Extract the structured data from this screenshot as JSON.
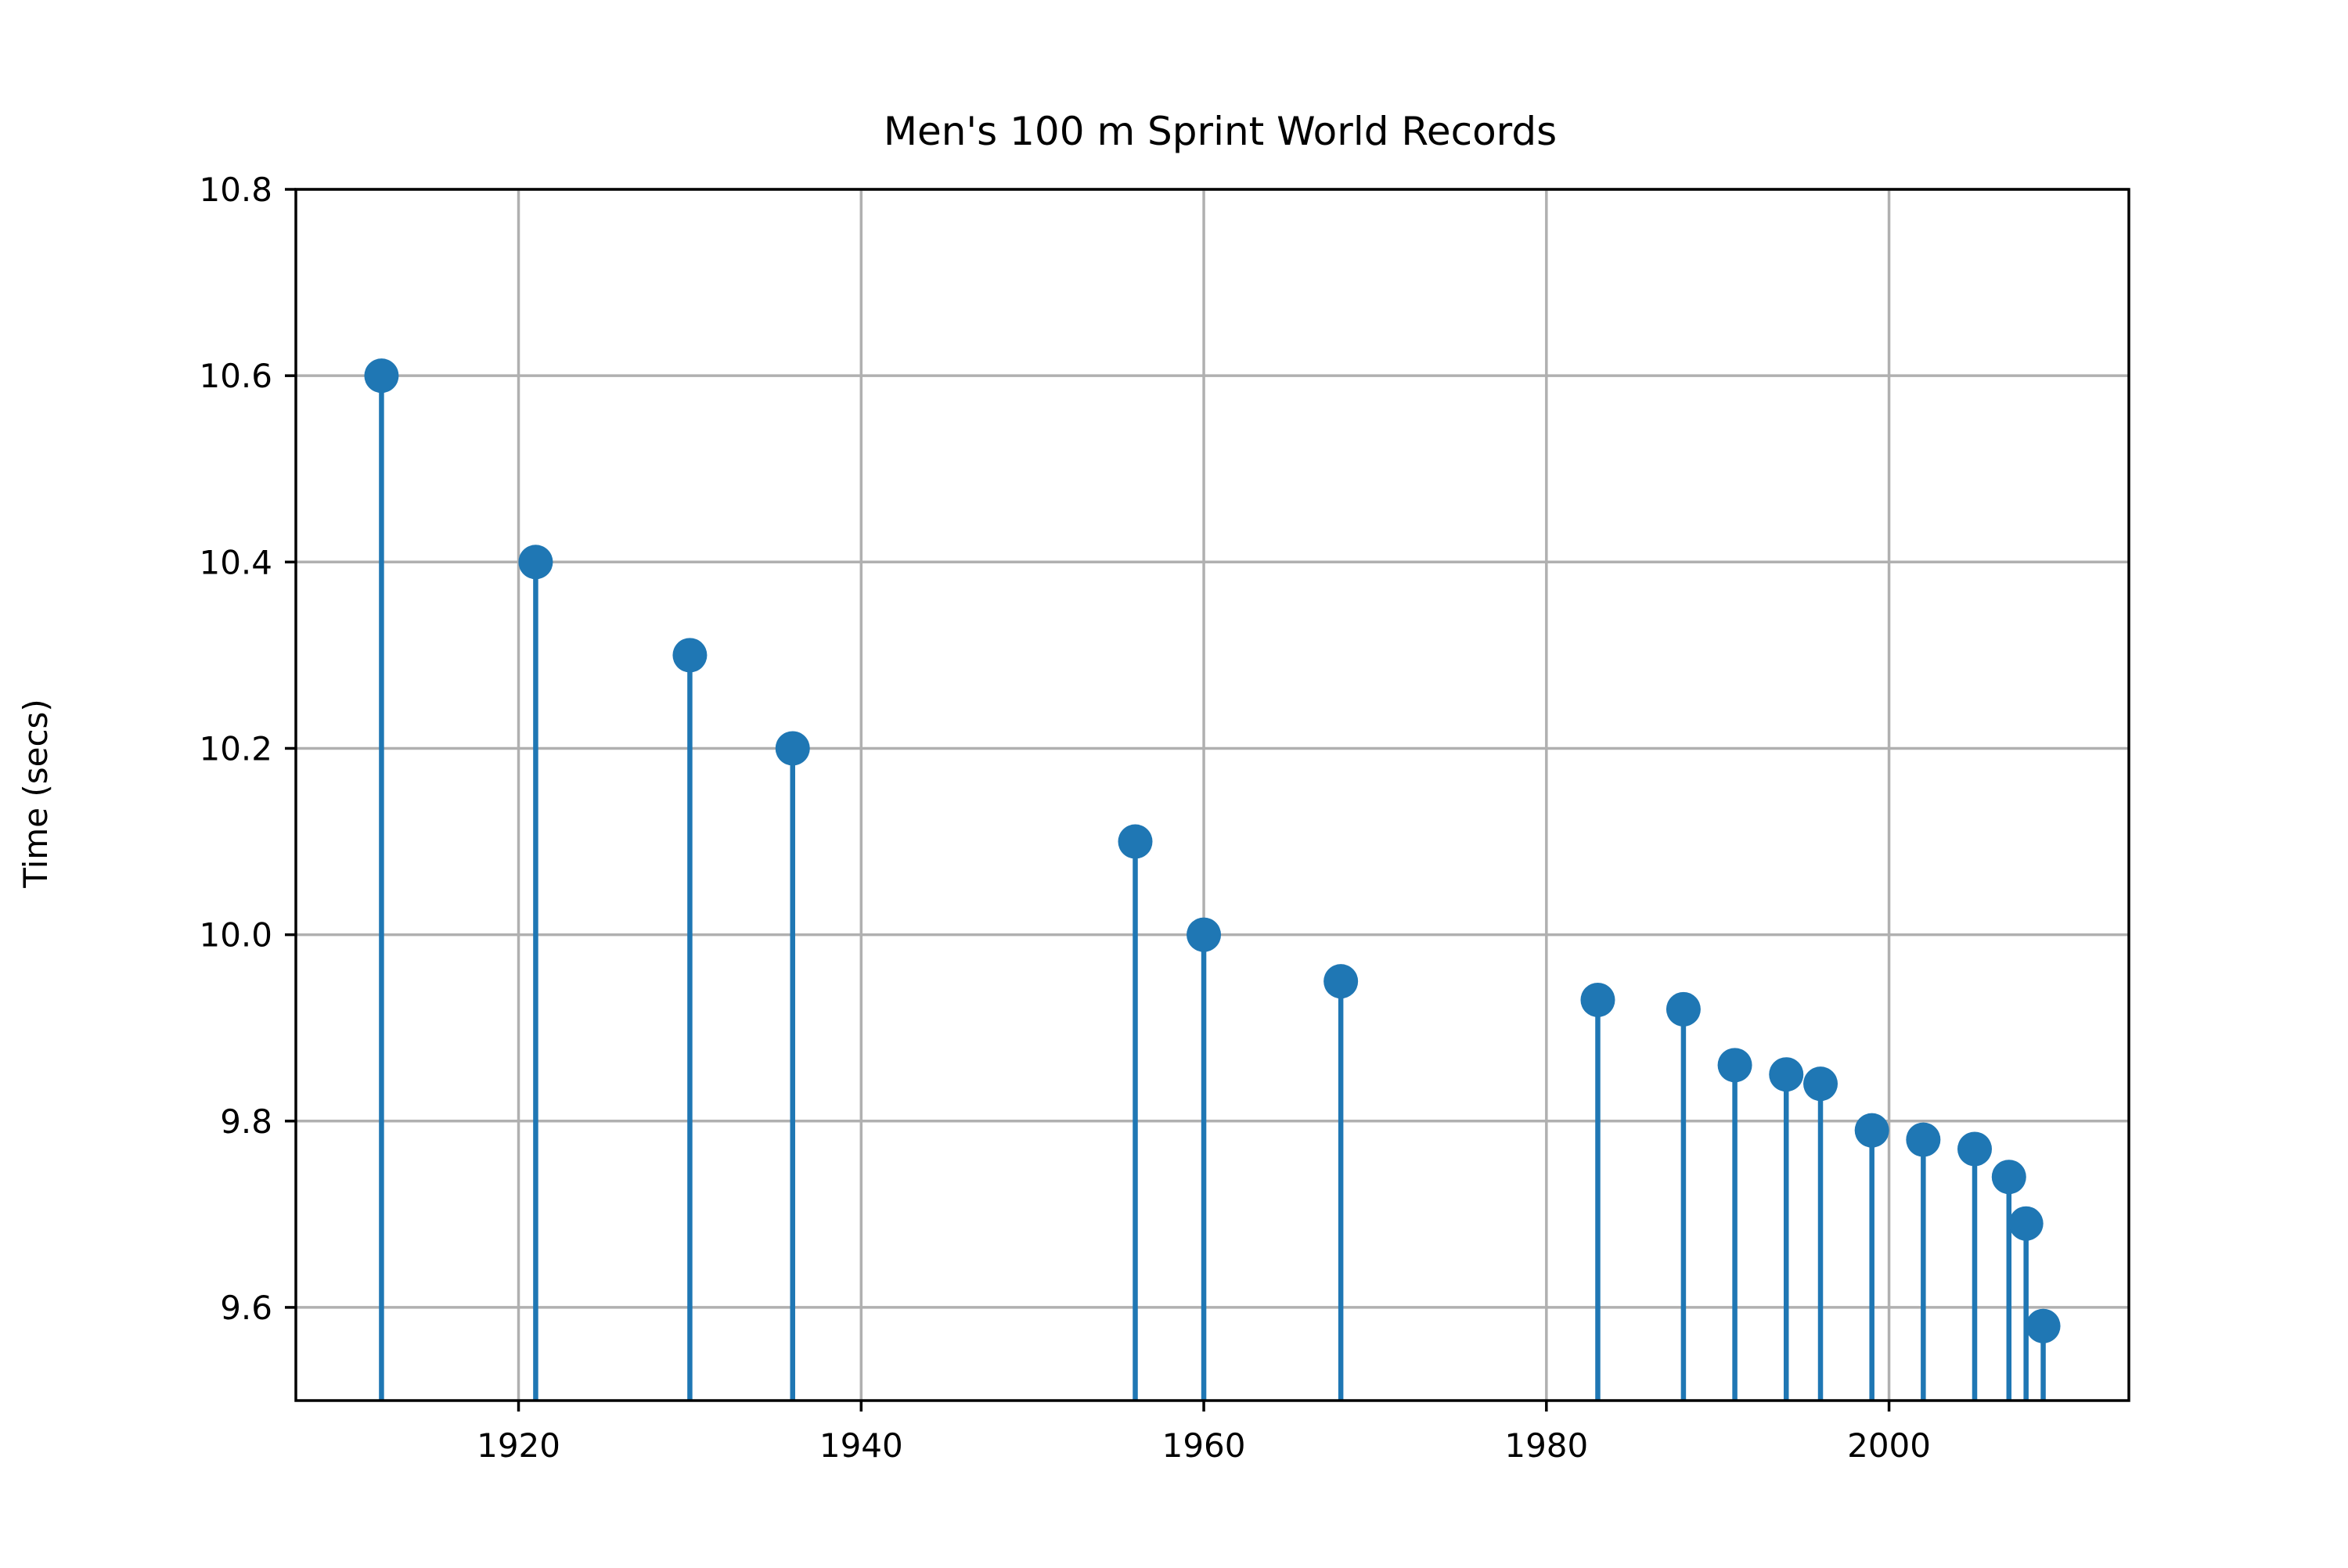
{
  "chart_data": {
    "type": "stem",
    "title": "Men's 100 m Sprint World Records",
    "xlabel": "",
    "ylabel": "Time (secs)",
    "xlim": [
      1907,
      2014
    ],
    "ylim": [
      9.5,
      10.8
    ],
    "x_ticks": [
      1920,
      1940,
      1960,
      1980,
      2000
    ],
    "y_ticks": [
      9.6,
      9.8,
      10.0,
      10.2,
      10.4,
      10.6,
      10.8
    ],
    "y_tick_labels": [
      "9.6",
      "9.8",
      "10.0",
      "10.2",
      "10.4",
      "10.6",
      "10.8"
    ],
    "grid": true,
    "series": [
      {
        "x": [
          1912,
          1921,
          1930,
          1936,
          1956,
          1960,
          1968,
          1983,
          1988,
          1991,
          1994,
          1996,
          1999,
          2002,
          2005,
          2007,
          2008,
          2009
        ],
        "y": [
          10.6,
          10.4,
          10.3,
          10.2,
          10.1,
          10.0,
          9.95,
          9.93,
          9.92,
          9.86,
          9.85,
          9.84,
          9.79,
          9.78,
          9.77,
          9.74,
          9.69,
          9.58
        ],
        "color": "#1f77b4"
      }
    ],
    "grid_color": "#b0b0b0",
    "axis_color": "#000000"
  }
}
